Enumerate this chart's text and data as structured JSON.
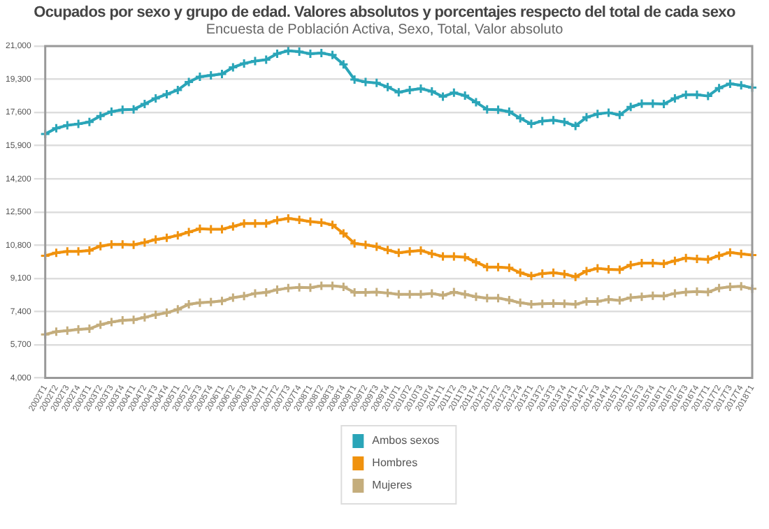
{
  "chart_data": {
    "type": "line",
    "title": "Ocupados por sexo y grupo de edad. Valores absolutos y porcentajes respecto del total de cada sexo",
    "subtitle": "Encuesta de Población Activa, Sexo, Total, Valor absoluto",
    "categories": [
      "2002T1",
      "2002T2",
      "2002T3",
      "2002T4",
      "2003T1",
      "2003T2",
      "2003T3",
      "2003T4",
      "2004T1",
      "2004T2",
      "2004T3",
      "2004T4",
      "2005T1",
      "2005T2",
      "2005T3",
      "2005T4",
      "2006T1",
      "2006T2",
      "2006T3",
      "2006T4",
      "2007T1",
      "2007T2",
      "2007T3",
      "2007T4",
      "2008T1",
      "2008T2",
      "2008T3",
      "2008T4",
      "2009T1",
      "2009T2",
      "2009T3",
      "2009T4",
      "2010T1",
      "2010T2",
      "2010T3",
      "2010T4",
      "2011T1",
      "2011T2",
      "2011T3",
      "2011T4",
      "2012T1",
      "2012T2",
      "2012T3",
      "2012T4",
      "2013T1",
      "2013T2",
      "2013T3",
      "2013T4",
      "2014T1",
      "2014T2",
      "2014T3",
      "2014T4",
      "2015T1",
      "2015T2",
      "2015T3",
      "2015T4",
      "2016T1",
      "2016T2",
      "2016T3",
      "2016T4",
      "2017T1",
      "2017T2",
      "2017T3",
      "2017T4",
      "2018T1"
    ],
    "series": [
      {
        "name": "Ambos sexos",
        "color": "#2aa5b8",
        "values": [
          16500,
          16790,
          16940,
          17010,
          17110,
          17420,
          17640,
          17740,
          17760,
          18030,
          18320,
          18530,
          18750,
          19160,
          19430,
          19500,
          19570,
          19910,
          20110,
          20230,
          20300,
          20610,
          20760,
          20710,
          20610,
          20640,
          20540,
          20060,
          19280,
          19160,
          19110,
          18900,
          18630,
          18750,
          18820,
          18680,
          18410,
          18610,
          18460,
          18120,
          17760,
          17740,
          17640,
          17300,
          17010,
          17160,
          17200,
          17110,
          16910,
          17350,
          17520,
          17590,
          17470,
          17880,
          18050,
          18050,
          18030,
          18320,
          18510,
          18510,
          18440,
          18850,
          19070,
          18990,
          18870
        ]
      },
      {
        "name": "Hombres",
        "color": "#f0920e",
        "values": [
          10260,
          10410,
          10480,
          10480,
          10530,
          10750,
          10840,
          10840,
          10820,
          10940,
          11090,
          11180,
          11300,
          11470,
          11640,
          11620,
          11620,
          11760,
          11910,
          11910,
          11910,
          12080,
          12170,
          12100,
          12010,
          11960,
          11840,
          11400,
          10890,
          10820,
          10720,
          10550,
          10410,
          10480,
          10530,
          10360,
          10220,
          10220,
          10190,
          9930,
          9680,
          9680,
          9640,
          9390,
          9220,
          9350,
          9390,
          9320,
          9180,
          9470,
          9610,
          9560,
          9540,
          9780,
          9880,
          9880,
          9850,
          10000,
          10140,
          10100,
          10070,
          10260,
          10430,
          10360,
          10290
        ]
      },
      {
        "name": "Mujeres",
        "color": "#c4ad7c",
        "values": [
          6230,
          6370,
          6420,
          6490,
          6520,
          6730,
          6860,
          6950,
          6980,
          7100,
          7240,
          7340,
          7510,
          7770,
          7850,
          7890,
          7940,
          8110,
          8190,
          8330,
          8380,
          8520,
          8600,
          8640,
          8620,
          8720,
          8720,
          8670,
          8380,
          8380,
          8400,
          8350,
          8280,
          8280,
          8280,
          8330,
          8230,
          8400,
          8280,
          8160,
          8090,
          8090,
          7990,
          7850,
          7770,
          7800,
          7820,
          7800,
          7770,
          7920,
          7920,
          8020,
          7970,
          8110,
          8160,
          8210,
          8190,
          8330,
          8400,
          8430,
          8400,
          8600,
          8670,
          8690,
          8570
        ]
      }
    ],
    "ylim": [
      4000,
      21000
    ],
    "yticks": [
      {
        "value": 4000,
        "label": "4,000"
      },
      {
        "value": 5700,
        "label": "5,700"
      },
      {
        "value": 7400,
        "label": "7,400"
      },
      {
        "value": 9100,
        "label": "9,100"
      },
      {
        "value": 10800,
        "label": "10,800"
      },
      {
        "value": 12500,
        "label": "12,500"
      },
      {
        "value": 14200,
        "label": "14,200"
      },
      {
        "value": 15900,
        "label": "15,900"
      },
      {
        "value": 17600,
        "label": "17,600"
      },
      {
        "value": 19300,
        "label": "19,300"
      },
      {
        "value": 21000,
        "label": "21,000"
      }
    ],
    "grid": "y",
    "legend": "bottom",
    "marker": "cross",
    "line_style": "solid"
  }
}
